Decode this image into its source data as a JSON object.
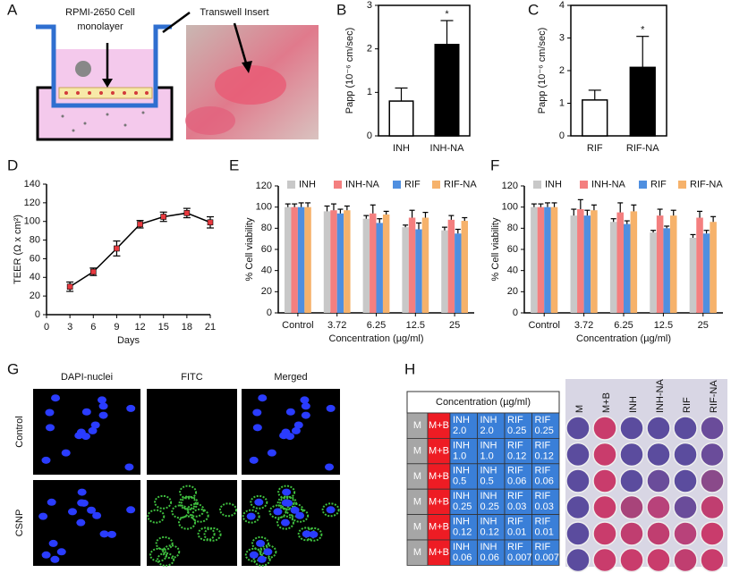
{
  "labels": [
    "A",
    "B",
    "C",
    "D",
    "E",
    "F",
    "G",
    "H"
  ],
  "diagram": {
    "cell_label": [
      "RPMI-2650 Cell",
      "monolayer"
    ],
    "insert_label": "Transwell Insert"
  },
  "chart_data": [
    {
      "type": "bar",
      "ylabel": "Papp (10⁻⁶ cm/sec)",
      "categories": [
        "INH",
        "INH-NA"
      ],
      "values": [
        0.8,
        2.1
      ],
      "errors": [
        0.3,
        0.55
      ],
      "colors": [
        "#ffffff",
        "#000000"
      ],
      "ylim": [
        0,
        3
      ],
      "yticks": [
        0,
        1,
        2,
        3
      ],
      "annotation": "*"
    },
    {
      "type": "bar",
      "ylabel": "Papp (10⁻⁶ cm/sec)",
      "categories": [
        "RIF",
        "RIF-NA"
      ],
      "values": [
        1.1,
        2.1
      ],
      "errors": [
        0.3,
        0.95
      ],
      "colors": [
        "#ffffff",
        "#000000"
      ],
      "ylim": [
        0,
        4
      ],
      "yticks": [
        0,
        1,
        2,
        3,
        4
      ],
      "annotation": "*"
    },
    {
      "type": "line",
      "xlabel": "Days",
      "ylabel": "TEER (Ω x cm²)",
      "x": [
        3,
        6,
        9,
        12,
        15,
        18,
        21
      ],
      "values": [
        30,
        46,
        71,
        97,
        105,
        109,
        99
      ],
      "errors": [
        5,
        4,
        8,
        4,
        5,
        5,
        6
      ],
      "color": "#e8393f",
      "xlim": [
        0,
        21
      ],
      "xticks": [
        0,
        3,
        6,
        9,
        12,
        15,
        18,
        21
      ],
      "ylim": [
        0,
        140
      ],
      "yticks": [
        0,
        20,
        40,
        60,
        80,
        100,
        120,
        140
      ]
    },
    {
      "type": "grouped_bar",
      "xlabel": "Concentration (µg/ml)",
      "ylabel": "% Cell viability",
      "categories": [
        "Control",
        "3.72",
        "6.25",
        "12.5",
        "25"
      ],
      "ylim": [
        0,
        120
      ],
      "yticks": [
        0,
        20,
        40,
        60,
        80,
        100,
        120
      ],
      "series": [
        {
          "name": "INH",
          "color": "#c8c8c8",
          "values": [
            100,
            96,
            89,
            81,
            78
          ],
          "errors": [
            3,
            5,
            3,
            2,
            3
          ]
        },
        {
          "name": "INH-NA",
          "color": "#f47f7f",
          "values": [
            100,
            97,
            94,
            90,
            88
          ],
          "errors": [
            3,
            6,
            8,
            7,
            4
          ]
        },
        {
          "name": "RIF",
          "color": "#4f8fe0",
          "values": [
            100,
            94,
            85,
            79,
            75
          ],
          "errors": [
            4,
            4,
            4,
            6,
            4
          ]
        },
        {
          "name": "RIF-NA",
          "color": "#f6b26b",
          "values": [
            100,
            97,
            93,
            90,
            87
          ],
          "errors": [
            4,
            4,
            3,
            5,
            3
          ]
        }
      ]
    },
    {
      "type": "grouped_bar",
      "xlabel": "Concentration (µg/ml)",
      "ylabel": "% Cell viability",
      "categories": [
        "Control",
        "3.72",
        "6.25",
        "12.5",
        "25"
      ],
      "ylim": [
        0,
        120
      ],
      "yticks": [
        0,
        20,
        40,
        60,
        80,
        100,
        120
      ],
      "series": [
        {
          "name": "INH",
          "color": "#c8c8c8",
          "values": [
            100,
            92,
            86,
            76,
            71
          ],
          "errors": [
            3,
            6,
            3,
            2,
            3
          ]
        },
        {
          "name": "INH-NA",
          "color": "#f47f7f",
          "values": [
            100,
            98,
            95,
            92,
            90
          ],
          "errors": [
            3,
            9,
            9,
            6,
            6
          ]
        },
        {
          "name": "RIF",
          "color": "#4f8fe0",
          "values": [
            100,
            92,
            84,
            80,
            75
          ],
          "errors": [
            4,
            5,
            3,
            2,
            3
          ]
        },
        {
          "name": "RIF-NA",
          "color": "#f6b26b",
          "values": [
            100,
            97,
            96,
            92,
            86
          ],
          "errors": [
            4,
            5,
            6,
            5,
            5
          ]
        }
      ]
    }
  ],
  "micrographs": {
    "columns": [
      "DAPI-nuclei",
      "FITC",
      "Merged"
    ],
    "rows": [
      "Control",
      "CSNP"
    ]
  },
  "table": {
    "title": "Concentration (µg/ml)",
    "rows": [
      [
        "M",
        "M+B",
        [
          "INH",
          "2.0"
        ],
        [
          "INH",
          "2.0"
        ],
        [
          "RIF",
          "0.25"
        ],
        [
          "RIF",
          "0.25"
        ]
      ],
      [
        "M",
        "M+B",
        [
          "INH",
          "1.0"
        ],
        [
          "INH",
          "1.0"
        ],
        [
          "RIF",
          "0.12"
        ],
        [
          "RIF",
          "0.12"
        ]
      ],
      [
        "M",
        "M+B",
        [
          "INH",
          "0.5"
        ],
        [
          "INH",
          "0.5"
        ],
        [
          "RIF",
          "0.06"
        ],
        [
          "RIF",
          "0.06"
        ]
      ],
      [
        "M",
        "M+B",
        [
          "INH",
          "0.25"
        ],
        [
          "INH",
          "0.25"
        ],
        [
          "RIF",
          "0.03"
        ],
        [
          "RIF",
          "0.03"
        ]
      ],
      [
        "M",
        "M+B",
        [
          "INH",
          "0.12"
        ],
        [
          "INH",
          "0.12"
        ],
        [
          "RIF",
          "0.01"
        ],
        [
          "RIF",
          "0.01"
        ]
      ],
      [
        "M",
        "M+B",
        [
          "INH",
          "0.06"
        ],
        [
          "INH",
          "0.06"
        ],
        [
          "RIF",
          "0.007"
        ],
        [
          "RIF",
          "0.007"
        ]
      ]
    ]
  },
  "plate": {
    "columns": [
      "M",
      "M+B",
      "INH",
      "INH-NA",
      "RIF",
      "RIF-NA"
    ],
    "wells": [
      [
        "#5b4c9e",
        "#c93c6c",
        "#5b4c9e",
        "#5b4c9e",
        "#5b4c9e",
        "#6a4c9a"
      ],
      [
        "#5b4c9e",
        "#c93c6c",
        "#5b4c9e",
        "#5b4c9e",
        "#5b4c9e",
        "#6a4c9a"
      ],
      [
        "#5b4c9e",
        "#c93c6c",
        "#5b4c9e",
        "#6a4c9a",
        "#5b4c9e",
        "#8a4a8a"
      ],
      [
        "#5b4c9e",
        "#c93c6c",
        "#a8447a",
        "#b8427a",
        "#6a4c9a",
        "#c03e70"
      ],
      [
        "#5b4c9e",
        "#c93c6c",
        "#c03e70",
        "#c03e70",
        "#b8427a",
        "#c93c6c"
      ],
      [
        "#5b4c9e",
        "#c93c6c",
        "#c93c6c",
        "#c93c6c",
        "#c03e70",
        "#c93c6c"
      ]
    ]
  }
}
